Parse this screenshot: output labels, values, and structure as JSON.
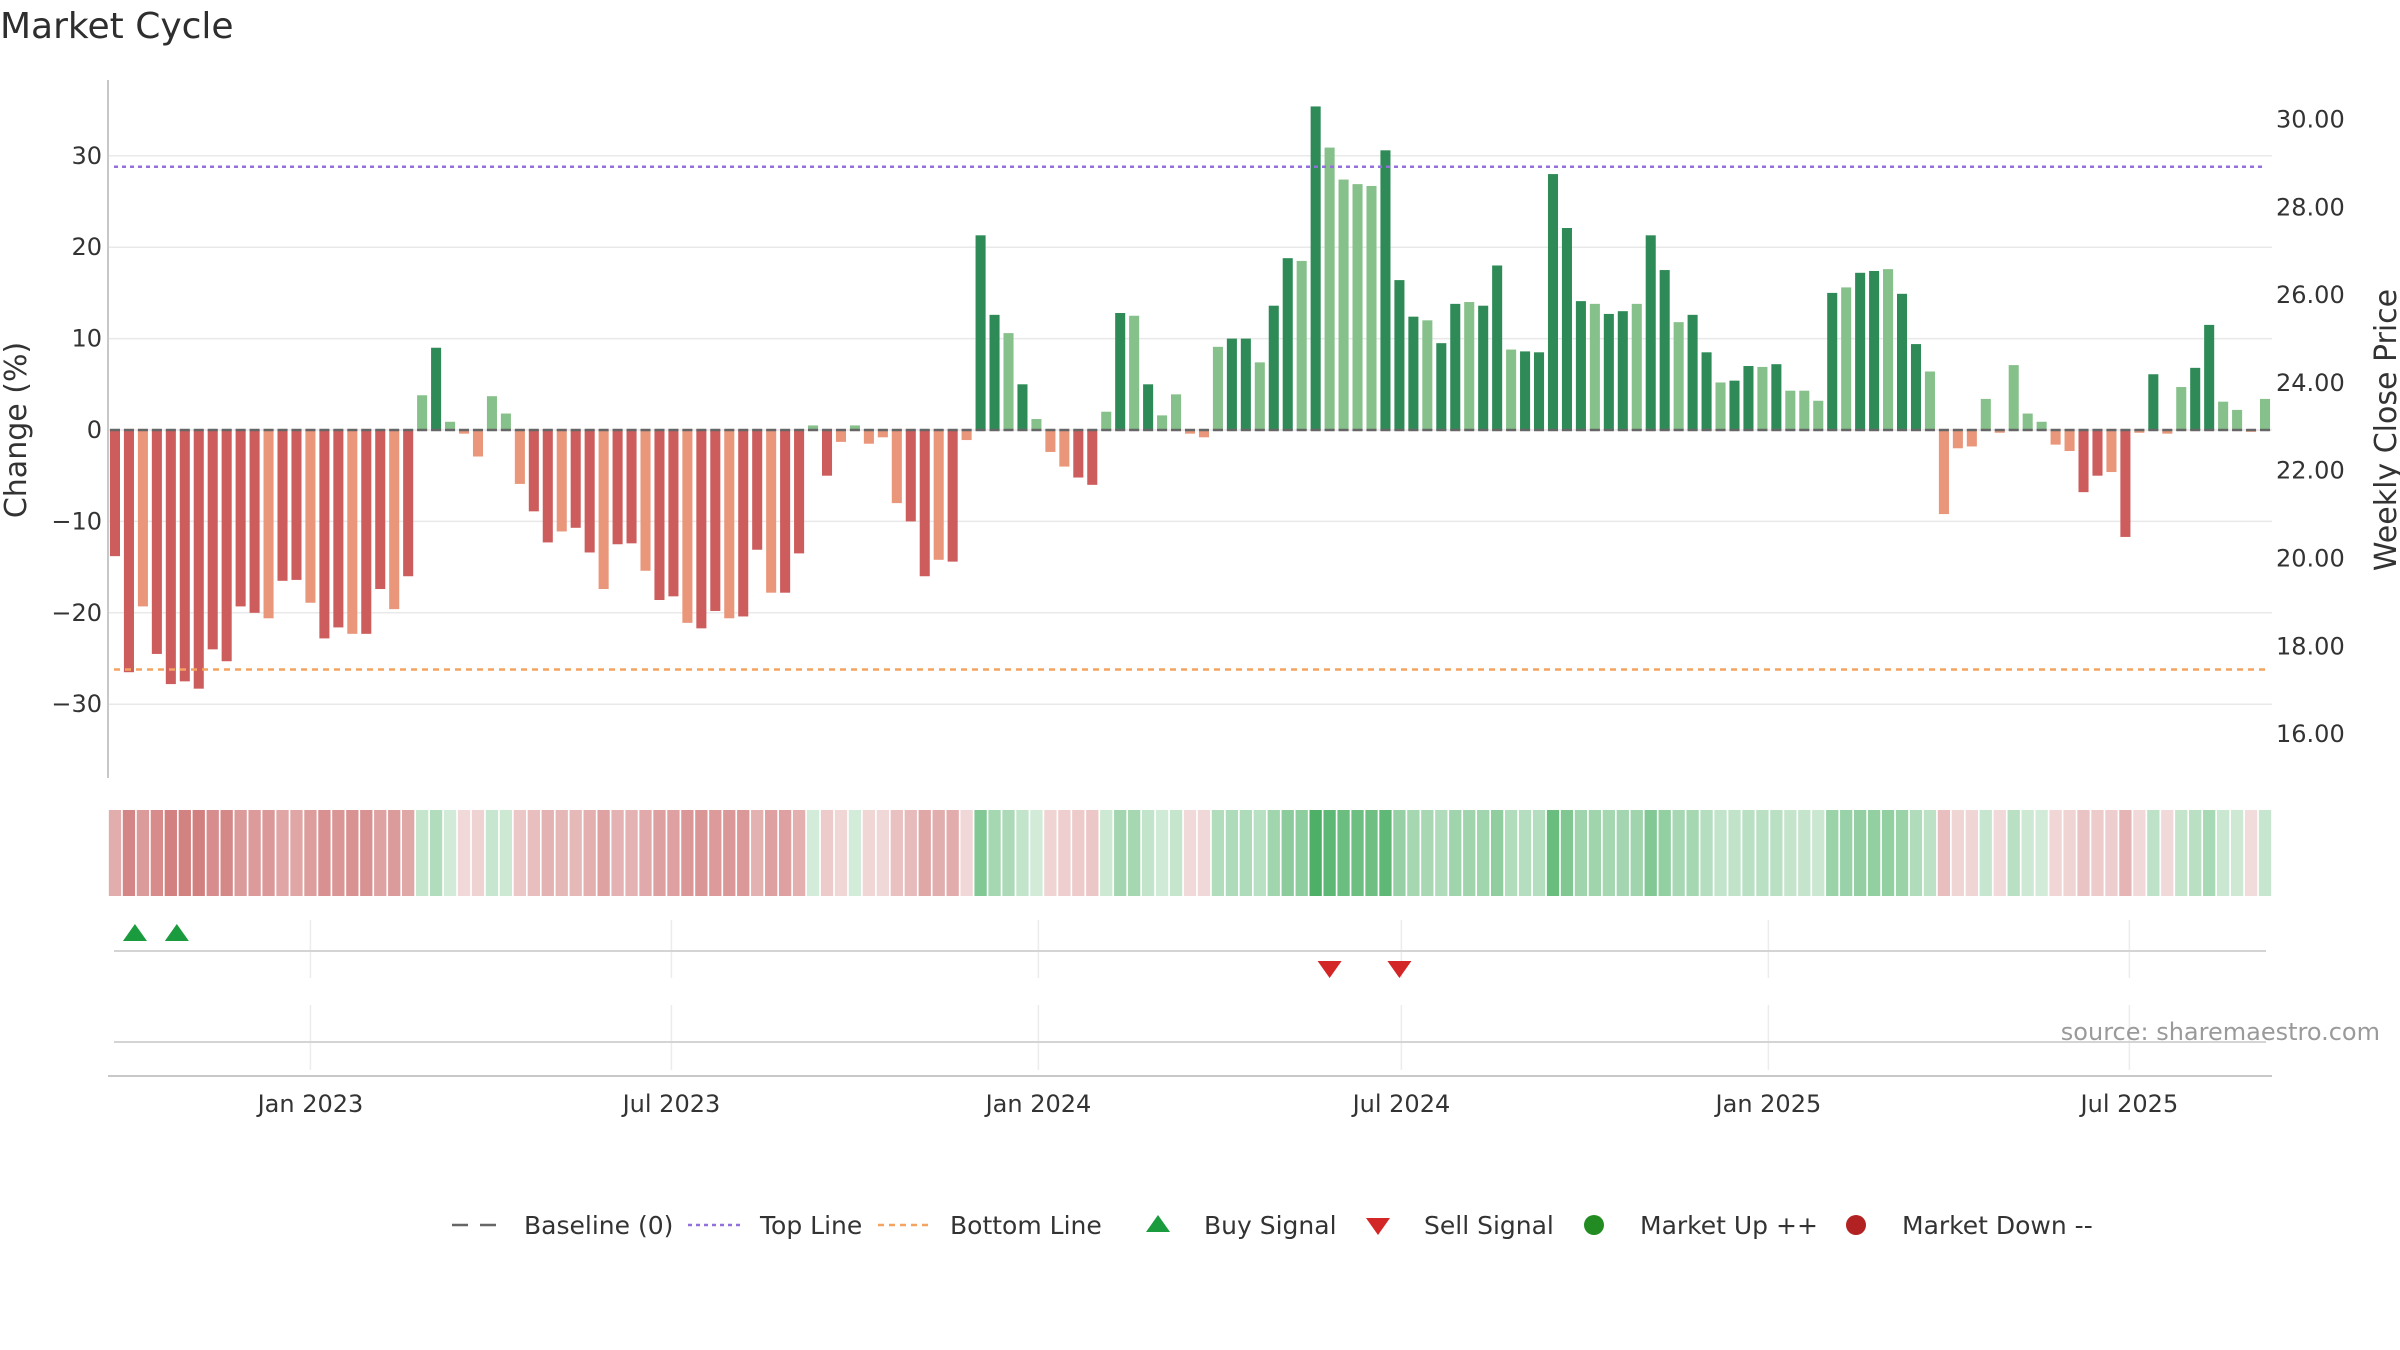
{
  "chart_data": {
    "type": "bar",
    "title": "Market Cycle",
    "ylabel": "Change (%)",
    "y2label": "Weekly Close Price",
    "ylim": [
      -38.5,
      38
    ],
    "yticks": [
      30,
      20,
      10,
      0,
      -10,
      -20,
      -30
    ],
    "y2lim": [
      15.0,
      30.9
    ],
    "y2ticks": [
      "30.00",
      "28.00",
      "26.00",
      "24.00",
      "22.00",
      "20.00",
      "18.00",
      "16.00"
    ],
    "top_line": 28.8,
    "bottom_line": -26.2,
    "x_start": "2022-09-25",
    "x_step_days": 7,
    "xticks": [
      "Jan 2023",
      "Jul 2023",
      "Jan 2024",
      "Jul 2024",
      "Jan 2025",
      "Jul 2025"
    ],
    "values": [
      -13.8,
      -26.5,
      -19.3,
      -24.5,
      -27.8,
      -27.5,
      -28.3,
      -24.0,
      -25.3,
      -19.3,
      -20.0,
      -20.6,
      -16.5,
      -16.4,
      -18.9,
      -22.8,
      -21.6,
      -22.3,
      -22.3,
      -17.4,
      -19.6,
      -16.0,
      3.8,
      9.0,
      0.9,
      -0.4,
      -2.9,
      3.7,
      1.8,
      -5.9,
      -8.9,
      -12.3,
      -11.1,
      -10.7,
      -13.4,
      -17.4,
      -12.5,
      -12.4,
      -15.4,
      -18.6,
      -18.2,
      -21.1,
      -21.7,
      -19.8,
      -20.6,
      -20.4,
      -13.1,
      -17.8,
      -17.8,
      -13.5,
      0.5,
      -5.0,
      -1.3,
      0.5,
      -1.5,
      -0.8,
      -8.0,
      -10.0,
      -16.0,
      -14.2,
      -14.4,
      -1.1,
      21.3,
      12.6,
      10.6,
      5.0,
      1.2,
      -2.4,
      -4.0,
      -5.2,
      -6.0,
      2.0,
      12.8,
      12.5,
      5.0,
      1.6,
      3.9,
      -0.4,
      -0.8,
      9.1,
      10.0,
      10.0,
      7.4,
      13.6,
      18.8,
      18.5,
      35.4,
      30.9,
      27.4,
      26.9,
      26.7,
      30.6,
      16.4,
      12.4,
      12.0,
      9.5,
      13.8,
      14.0,
      13.6,
      18.0,
      8.8,
      8.6,
      8.5,
      28.0,
      22.1,
      14.1,
      13.8,
      12.7,
      13.0,
      13.8,
      21.3,
      17.5,
      11.8,
      12.6,
      8.5,
      5.2,
      5.4,
      7.0,
      6.9,
      7.2,
      4.3,
      4.3,
      3.2,
      15.0,
      15.6,
      17.2,
      17.4,
      17.6,
      14.9,
      9.4,
      6.4,
      -9.2,
      -2.0,
      -1.8,
      3.4,
      -0.3,
      7.1,
      1.8,
      0.9,
      -1.6,
      -2.3,
      -6.8,
      -5.0,
      -4.6,
      -11.7,
      -0.3,
      6.1,
      -0.4,
      4.7,
      6.8,
      11.5,
      3.1,
      2.2,
      -0.2,
      3.4
    ],
    "colors": {
      "up_strong": "#2e8b57",
      "up_light": "#86c08a",
      "down_strong": "#cd5c5c",
      "down_light": "#e9967a",
      "top_line": "#9370db",
      "bottom_line": "#f4a460",
      "buy": "#1a9c3e",
      "sell": "#d32626",
      "market_up": "#228b22",
      "market_down": "#b22222",
      "baseline": "#666666"
    },
    "signals": {
      "buy_bar_indexes": [
        1,
        4
      ],
      "sell_bar_indexes": [
        87,
        92
      ]
    },
    "legend": [
      {
        "key": "baseline",
        "label": "Baseline (0)"
      },
      {
        "key": "top",
        "label": "Top Line"
      },
      {
        "key": "bottom",
        "label": "Bottom Line"
      },
      {
        "key": "buy",
        "label": "Buy Signal"
      },
      {
        "key": "sell",
        "label": "Sell Signal"
      },
      {
        "key": "up",
        "label": "Market Up ++"
      },
      {
        "key": "down",
        "label": "Market Down --"
      }
    ],
    "source": "source: sharemaestro.com"
  }
}
